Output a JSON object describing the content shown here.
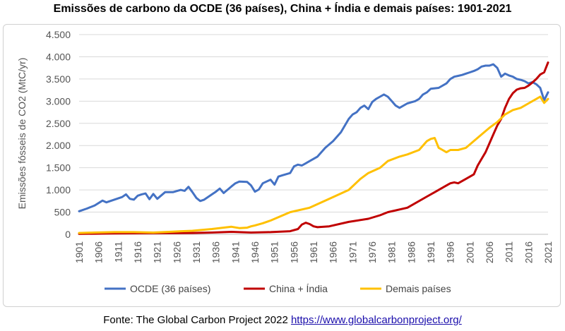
{
  "header": {
    "title": "Emissões de carbono da OCDE (36 países), China + Índia e demais países: 1901-2021"
  },
  "footer": {
    "source_prefix": "Fonte: The Global Carbon Project 2022",
    "source_link": "https://www.globalcarbonproject.org/"
  },
  "chart_data": {
    "type": "line",
    "title": "Emissões de carbono da OCDE (36 países), China + Índia e demais países: 1901-2021",
    "xlabel": "",
    "ylabel": "Emissões fósseis de CO2 (MtC/yr)",
    "ylim": [
      0,
      4500
    ],
    "yticks": [
      0,
      500,
      1000,
      1500,
      2000,
      2500,
      3000,
      3500,
      4000,
      4500
    ],
    "ytick_labels": [
      "0",
      "500",
      "1.000",
      "1.500",
      "2.000",
      "2.500",
      "3.000",
      "3.500",
      "4.000",
      "4.500"
    ],
    "xlim": [
      1901,
      2021
    ],
    "xticks": [
      1901,
      1906,
      1911,
      1916,
      1921,
      1926,
      1931,
      1936,
      1941,
      1946,
      1951,
      1956,
      1961,
      1966,
      1971,
      1976,
      1981,
      1986,
      1991,
      1996,
      2001,
      2006,
      2011,
      2016,
      2021
    ],
    "grid": "horizontal",
    "legend": "bottom",
    "series": [
      {
        "name": "OCDE (36 países)",
        "color": "#4472C4",
        "x": [
          1901,
          1903,
          1905,
          1907,
          1908,
          1910,
          1912,
          1913,
          1914,
          1915,
          1916,
          1917,
          1918,
          1919,
          1920,
          1921,
          1923,
          1925,
          1927,
          1928,
          1929,
          1930,
          1931,
          1932,
          1933,
          1935,
          1936,
          1937,
          1938,
          1940,
          1941,
          1942,
          1944,
          1945,
          1946,
          1947,
          1948,
          1950,
          1951,
          1952,
          1953,
          1955,
          1956,
          1957,
          1958,
          1959,
          1960,
          1962,
          1964,
          1966,
          1968,
          1970,
          1971,
          1972,
          1973,
          1974,
          1975,
          1976,
          1977,
          1978,
          1979,
          1980,
          1981,
          1982,
          1983,
          1985,
          1987,
          1988,
          1989,
          1990,
          1991,
          1993,
          1995,
          1996,
          1997,
          1998,
          1999,
          2000,
          2001,
          2002,
          2003,
          2004,
          2005,
          2006,
          2007,
          2008,
          2009,
          2010,
          2011,
          2012,
          2013,
          2014,
          2015,
          2016,
          2017,
          2018,
          2019,
          2020,
          2021
        ],
        "values": [
          520,
          580,
          650,
          760,
          720,
          780,
          840,
          900,
          800,
          780,
          870,
          900,
          920,
          790,
          910,
          800,
          950,
          950,
          1000,
          980,
          1070,
          950,
          820,
          750,
          780,
          900,
          960,
          1030,
          930,
          1080,
          1150,
          1190,
          1180,
          1100,
          960,
          1010,
          1150,
          1230,
          1120,
          1300,
          1330,
          1380,
          1530,
          1570,
          1550,
          1600,
          1650,
          1750,
          1950,
          2100,
          2300,
          2600,
          2700,
          2750,
          2850,
          2900,
          2820,
          2980,
          3050,
          3100,
          3150,
          3100,
          3000,
          2900,
          2850,
          2950,
          3000,
          3050,
          3150,
          3200,
          3280,
          3300,
          3400,
          3500,
          3550,
          3570,
          3590,
          3620,
          3650,
          3680,
          3720,
          3780,
          3800,
          3800,
          3830,
          3750,
          3550,
          3620,
          3580,
          3550,
          3500,
          3480,
          3450,
          3400,
          3430,
          3380,
          3300,
          3020,
          3200
        ]
      },
      {
        "name": "China + Índia",
        "color": "#C00000",
        "x": [
          1901,
          1910,
          1920,
          1930,
          1935,
          1940,
          1945,
          1950,
          1955,
          1957,
          1958,
          1959,
          1960,
          1961,
          1962,
          1965,
          1970,
          1975,
          1978,
          1980,
          1985,
          1990,
          1992,
          1995,
          1996,
          1997,
          1998,
          2000,
          2002,
          2003,
          2004,
          2005,
          2006,
          2007,
          2008,
          2009,
          2010,
          2011,
          2012,
          2013,
          2014,
          2015,
          2016,
          2017,
          2018,
          2019,
          2020,
          2021
        ],
        "values": [
          10,
          20,
          25,
          30,
          40,
          55,
          40,
          50,
          70,
          120,
          220,
          260,
          230,
          180,
          160,
          180,
          280,
          350,
          430,
          500,
          600,
          850,
          950,
          1100,
          1150,
          1170,
          1150,
          1250,
          1350,
          1550,
          1700,
          1850,
          2050,
          2250,
          2450,
          2600,
          2850,
          3050,
          3180,
          3260,
          3290,
          3300,
          3350,
          3420,
          3500,
          3600,
          3650,
          3870
        ]
      },
      {
        "name": "Demais países",
        "color": "#FFC000",
        "x": [
          1901,
          1905,
          1910,
          1915,
          1920,
          1925,
          1930,
          1935,
          1940,
          1942,
          1944,
          1945,
          1946,
          1948,
          1950,
          1955,
          1960,
          1965,
          1970,
          1973,
          1975,
          1978,
          1980,
          1983,
          1985,
          1988,
          1990,
          1991,
          1992,
          1993,
          1994,
          1995,
          1996,
          1998,
          2000,
          2002,
          2004,
          2006,
          2008,
          2010,
          2012,
          2014,
          2016,
          2018,
          2019,
          2020,
          2021
        ],
        "values": [
          30,
          40,
          50,
          50,
          40,
          60,
          80,
          120,
          170,
          140,
          150,
          180,
          200,
          250,
          310,
          500,
          600,
          800,
          1000,
          1250,
          1380,
          1500,
          1650,
          1750,
          1800,
          1900,
          2100,
          2150,
          2170,
          1950,
          1900,
          1850,
          1900,
          1900,
          1950,
          2100,
          2250,
          2400,
          2530,
          2700,
          2800,
          2850,
          2950,
          3050,
          3100,
          2960,
          3050
        ]
      }
    ]
  }
}
